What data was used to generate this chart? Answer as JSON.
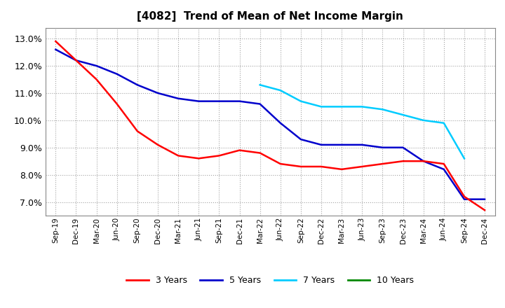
{
  "title": "[4082]  Trend of Mean of Net Income Margin",
  "ylim": [
    0.065,
    0.134
  ],
  "yticks": [
    0.07,
    0.08,
    0.09,
    0.1,
    0.11,
    0.12,
    0.13
  ],
  "background_color": "#ffffff",
  "grid_color": "#aaaaaa",
  "series": {
    "3y": {
      "color": "#ff0000",
      "label": "3 Years",
      "x": [
        "Sep-19",
        "Dec-19",
        "Mar-20",
        "Jun-20",
        "Sep-20",
        "Dec-20",
        "Mar-21",
        "Jun-21",
        "Sep-21",
        "Dec-21",
        "Mar-22",
        "Jun-22",
        "Sep-22",
        "Dec-22",
        "Mar-23",
        "Jun-23",
        "Sep-23",
        "Dec-23",
        "Mar-24",
        "Jun-24",
        "Sep-24",
        "Dec-24"
      ],
      "y": [
        0.129,
        0.122,
        0.115,
        0.106,
        0.096,
        0.091,
        0.087,
        0.086,
        0.087,
        0.089,
        0.088,
        0.084,
        0.083,
        0.083,
        0.082,
        0.083,
        0.084,
        0.085,
        0.085,
        0.084,
        0.072,
        0.067
      ]
    },
    "5y": {
      "color": "#0000cc",
      "label": "5 Years",
      "x": [
        "Sep-19",
        "Dec-19",
        "Mar-20",
        "Jun-20",
        "Sep-20",
        "Dec-20",
        "Mar-21",
        "Jun-21",
        "Sep-21",
        "Dec-21",
        "Mar-22",
        "Jun-22",
        "Sep-22",
        "Dec-22",
        "Mar-23",
        "Jun-23",
        "Sep-23",
        "Dec-23",
        "Mar-24",
        "Jun-24",
        "Sep-24",
        "Dec-24"
      ],
      "y": [
        0.126,
        0.122,
        0.12,
        0.117,
        0.113,
        0.11,
        0.108,
        0.107,
        0.107,
        0.107,
        0.106,
        0.099,
        0.093,
        0.091,
        0.091,
        0.091,
        0.09,
        0.09,
        0.085,
        0.082,
        0.071,
        0.071
      ]
    },
    "7y": {
      "color": "#00ccff",
      "label": "7 Years",
      "x": [
        "Mar-22",
        "Jun-22",
        "Sep-22",
        "Dec-22",
        "Mar-23",
        "Jun-23",
        "Sep-23",
        "Dec-23",
        "Mar-24",
        "Jun-24",
        "Sep-24"
      ],
      "y": [
        0.113,
        0.111,
        0.107,
        0.105,
        0.105,
        0.105,
        0.104,
        0.102,
        0.1,
        0.099,
        0.086
      ]
    },
    "10y": {
      "color": "#008800",
      "label": "10 Years",
      "x": [],
      "y": []
    }
  },
  "legend_labels": [
    "3 Years",
    "5 Years",
    "7 Years",
    "10 Years"
  ],
  "legend_colors": [
    "#ff0000",
    "#0000cc",
    "#00ccff",
    "#008800"
  ]
}
